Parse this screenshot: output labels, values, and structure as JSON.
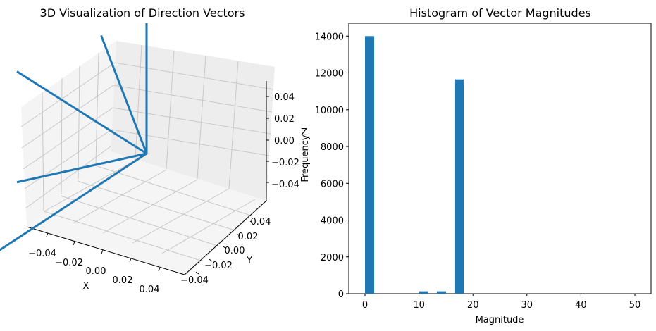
{
  "colors": {
    "series": "#1f77b4",
    "pane": "#f2f2f2",
    "grid": "#cccccc",
    "axis": "#000000"
  },
  "chart_data": [
    {
      "type": "3d-quiver",
      "title": "3D Visualization of Direction Vectors",
      "xlabel": "X",
      "ylabel": "Y",
      "zlabel": "Z",
      "xticks": [
        "−0.04",
        "−0.02",
        "0.00",
        "0.02",
        "0.04"
      ],
      "yticks": [
        "−0.04",
        "−0.02",
        "0.00",
        "0.02",
        "0.04"
      ],
      "zticks": [
        "−0.04",
        "−0.02",
        "0.00",
        "0.02",
        "0.04"
      ],
      "xlim": [
        -0.05,
        0.05
      ],
      "ylim": [
        -0.05,
        0.05
      ],
      "zlim": [
        -0.05,
        0.05
      ],
      "origin": [
        0,
        0,
        0
      ],
      "vectors": [
        [
          0,
          0,
          1
        ],
        [
          0,
          -0.35,
          1
        ],
        [
          0,
          -1,
          0.9
        ],
        [
          0,
          -1,
          0.05
        ],
        [
          0.25,
          -1,
          -0.45
        ]
      ],
      "grid": true
    },
    {
      "type": "bar",
      "title": "Histogram of Vector Magnitudes",
      "xlabel": "Magnitude",
      "ylabel": "Frequency",
      "xlim": [
        -3,
        53
      ],
      "ylim": [
        0,
        14700
      ],
      "xticks": [
        0,
        10,
        20,
        30,
        40,
        50
      ],
      "yticks": [
        0,
        2000,
        4000,
        6000,
        8000,
        10000,
        12000,
        14000
      ],
      "bins": [
        {
          "x0": 0,
          "x1": 1.7,
          "value": 14000
        },
        {
          "x0": 10,
          "x1": 11.7,
          "value": 130
        },
        {
          "x0": 13.3,
          "x1": 15,
          "value": 130
        },
        {
          "x0": 16.7,
          "x1": 18.3,
          "value": 11650
        }
      ]
    }
  ]
}
